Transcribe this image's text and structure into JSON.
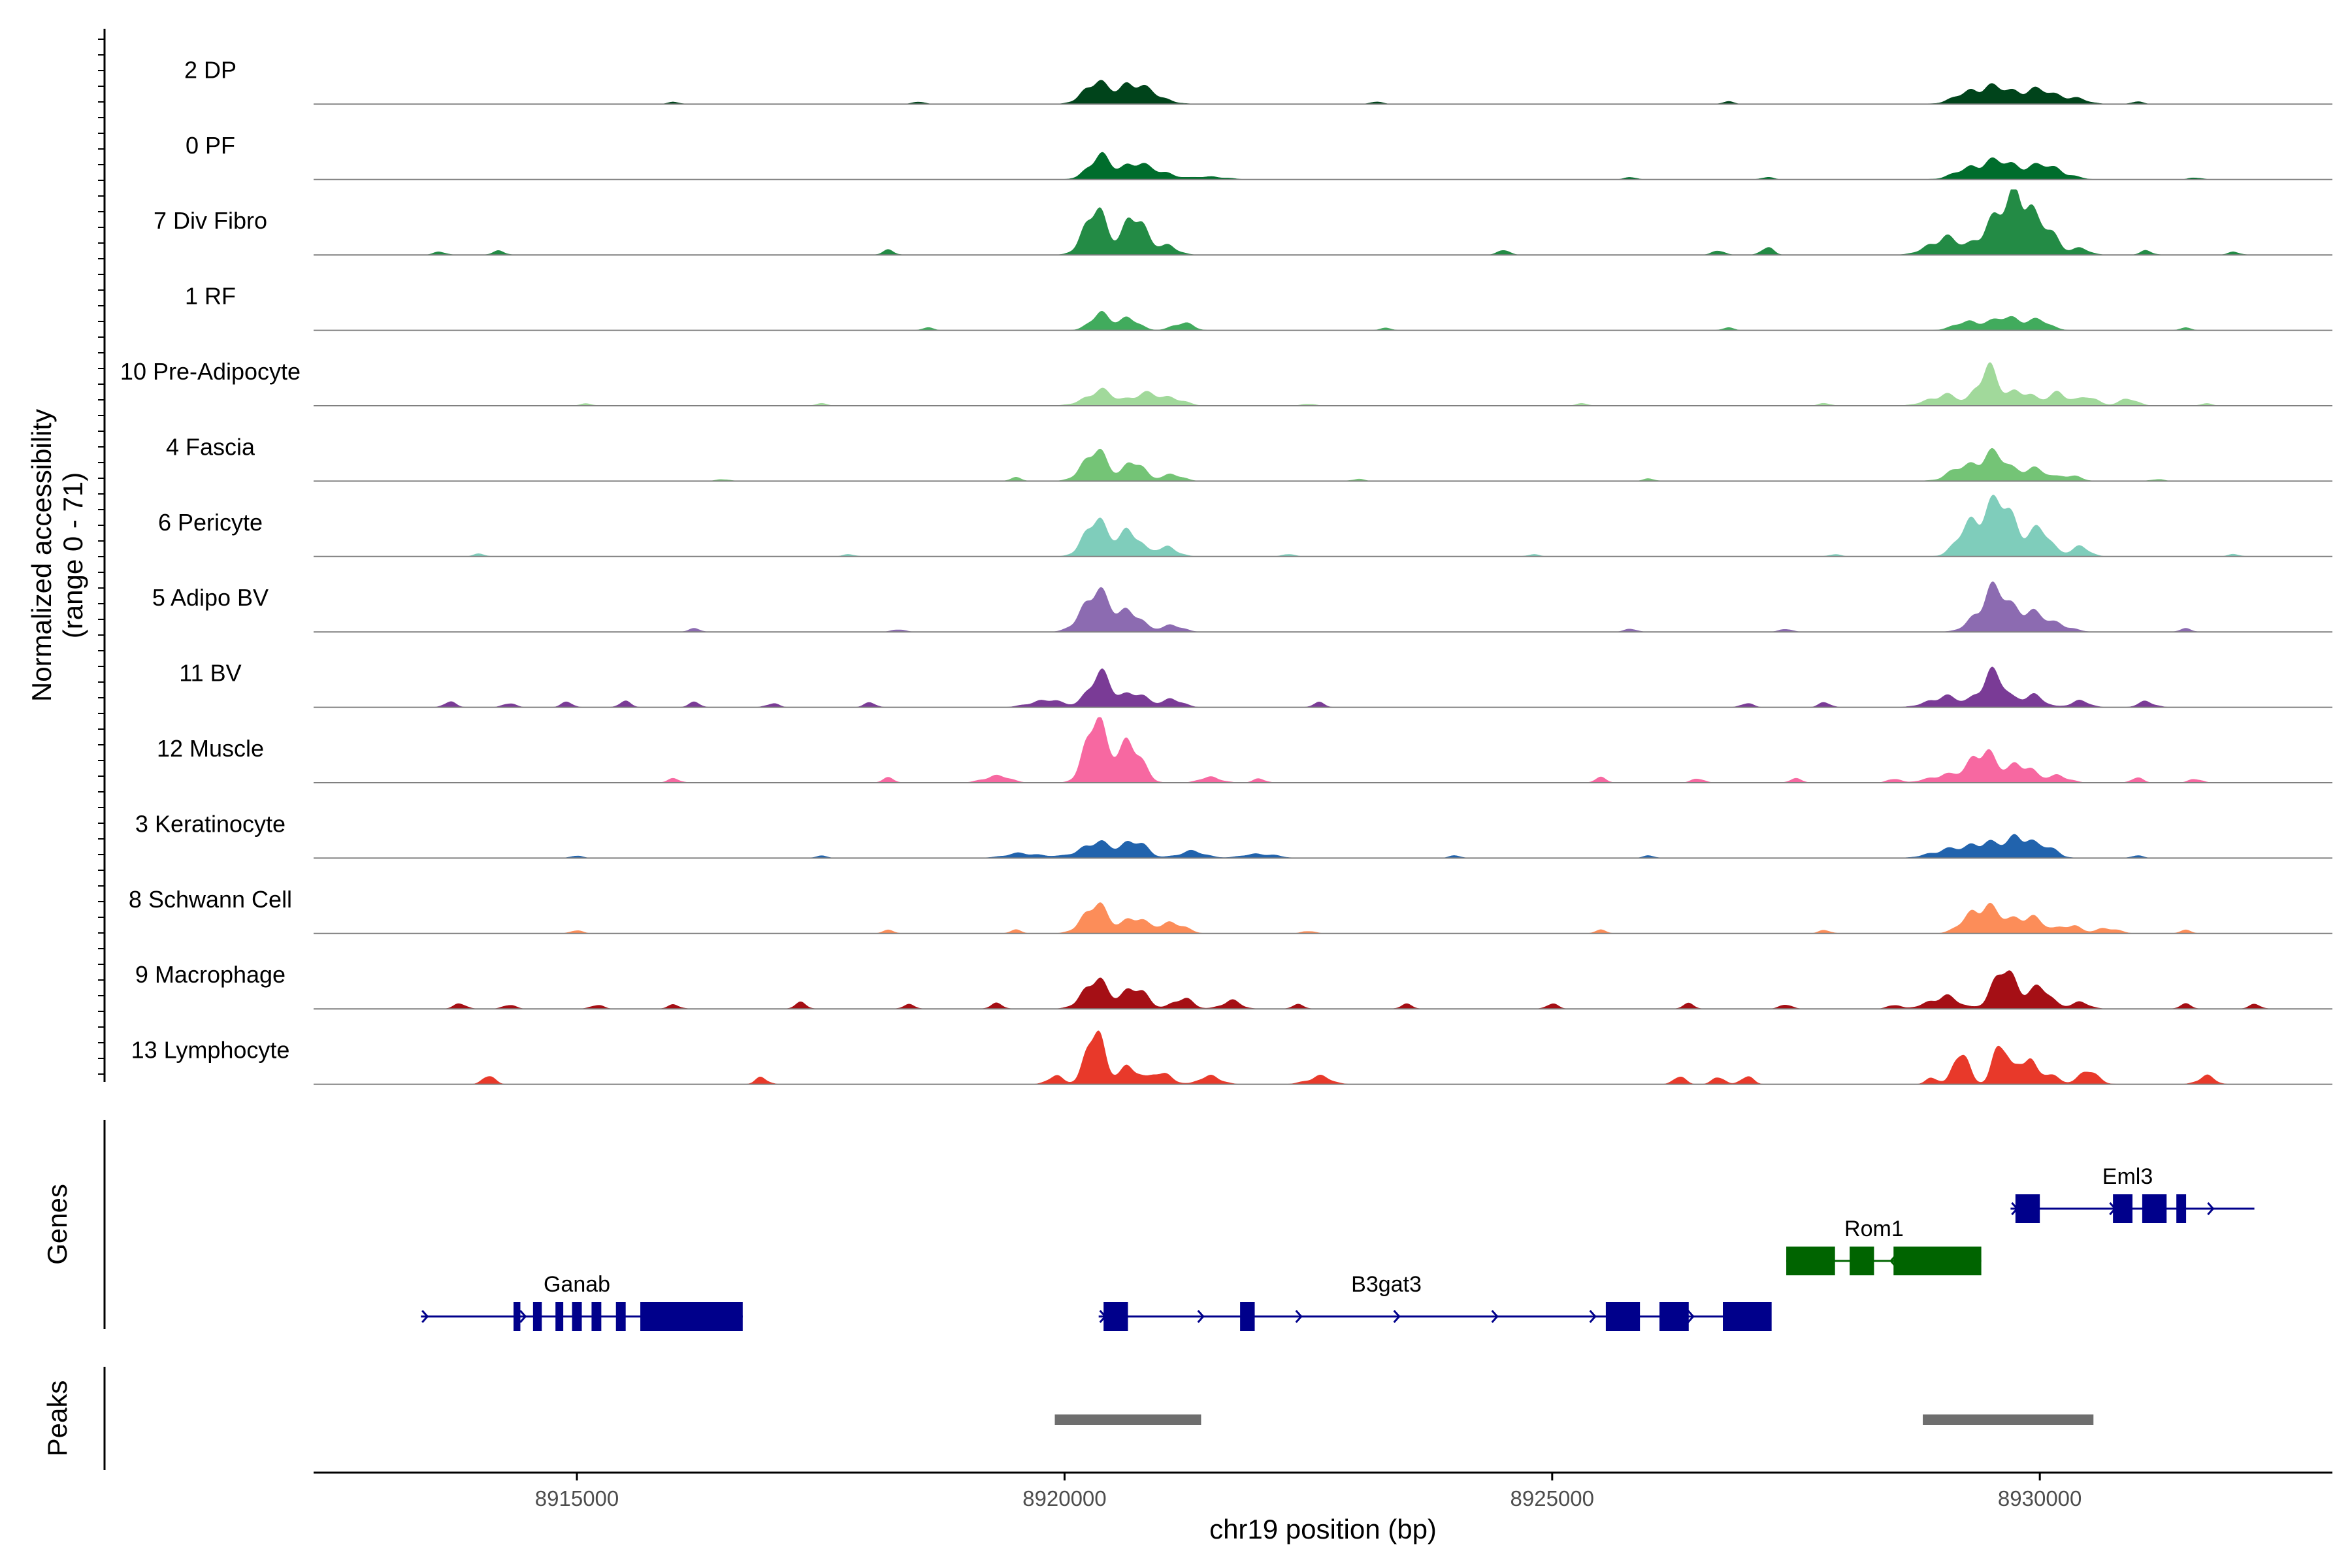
{
  "chart_data": {
    "type": "area",
    "title": "",
    "ylabel_line1": "Normalized accessibility",
    "ylabel_line2": "(range 0 - 71)",
    "yrange": [
      0,
      71
    ],
    "xlabel": "chr19 position (bp)",
    "xlim": [
      8912300,
      8933000
    ],
    "xticks": [
      8915000,
      8920000,
      8925000,
      8930000
    ],
    "xtick_labels": [
      "8915000",
      "8920000",
      "8925000",
      "8930000"
    ],
    "tracks": [
      {
        "name": "2 DP",
        "color": "#00441b",
        "peaks": [
          [
            8920300,
            14,
            120
          ],
          [
            8920650,
            13,
            120
          ],
          [
            8920900,
            6,
            150
          ],
          [
            8929400,
            11,
            200
          ],
          [
            8929900,
            9,
            200
          ],
          [
            8930300,
            4,
            150
          ]
        ],
        "noise": [
          [
            8916000,
            1.5
          ],
          [
            8918500,
            1.5
          ],
          [
            8923200,
            1.5
          ],
          [
            8926800,
            1.5
          ],
          [
            8931000,
            1.5
          ]
        ]
      },
      {
        "name": "0 PF",
        "color": "#006d2c",
        "peaks": [
          [
            8920350,
            14,
            120
          ],
          [
            8920700,
            11,
            120
          ],
          [
            8921000,
            5,
            130
          ],
          [
            8921500,
            2,
            150
          ],
          [
            8929400,
            10,
            200
          ],
          [
            8929800,
            8,
            200
          ],
          [
            8930150,
            6,
            150
          ]
        ],
        "noise": [
          [
            8925800,
            1.5
          ],
          [
            8927200,
            1.5
          ],
          [
            8931600,
            1.5
          ]
        ]
      },
      {
        "name": "7 Div Fibro",
        "color": "#238b45",
        "peaks": [
          [
            8920300,
            30,
            110
          ],
          [
            8920700,
            28,
            110
          ],
          [
            8921050,
            7,
            100
          ],
          [
            8929000,
            11,
            150
          ],
          [
            8929500,
            19,
            150
          ],
          [
            8929800,
            44,
            120
          ],
          [
            8930100,
            14,
            100
          ],
          [
            8930400,
            4,
            100
          ]
        ],
        "noise": [
          [
            8913600,
            2
          ],
          [
            8914200,
            3
          ],
          [
            8918200,
            3
          ],
          [
            8924500,
            3
          ],
          [
            8926700,
            3
          ],
          [
            8927200,
            5
          ],
          [
            8931100,
            3
          ],
          [
            8932000,
            2
          ]
        ]
      },
      {
        "name": "1 RF",
        "color": "#41ab5d",
        "peaks": [
          [
            8920350,
            10,
            100
          ],
          [
            8920650,
            9,
            100
          ],
          [
            8921200,
            5,
            100
          ],
          [
            8929300,
            6,
            150
          ],
          [
            8929700,
            8,
            150
          ],
          [
            8930000,
            5,
            120
          ]
        ],
        "noise": [
          [
            8918600,
            1.5
          ],
          [
            8923300,
            1.5
          ],
          [
            8926800,
            1.5
          ],
          [
            8931500,
            1.5
          ]
        ]
      },
      {
        "name": "10 Pre-Adipocyte",
        "color": "#a1d99b",
        "peaks": [
          [
            8920350,
            9,
            150
          ],
          [
            8920800,
            7,
            150
          ],
          [
            8921100,
            5,
            120
          ],
          [
            8929000,
            7,
            150
          ],
          [
            8929450,
            25,
            100
          ],
          [
            8929800,
            11,
            120
          ],
          [
            8930200,
            9,
            100
          ],
          [
            8930500,
            5,
            100
          ],
          [
            8930900,
            4,
            100
          ]
        ],
        "noise": [
          [
            8915100,
            1.5
          ],
          [
            8917500,
            1.5
          ],
          [
            8922500,
            1.5
          ],
          [
            8925300,
            1.5
          ],
          [
            8927800,
            1.5
          ],
          [
            8931700,
            1.5
          ]
        ]
      },
      {
        "name": "4 Fascia",
        "color": "#74c476",
        "peaks": [
          [
            8920300,
            20,
            120
          ],
          [
            8920700,
            14,
            100
          ],
          [
            8921100,
            5,
            100
          ],
          [
            8929200,
            7,
            150
          ],
          [
            8929500,
            16,
            150
          ],
          [
            8929900,
            8,
            150
          ],
          [
            8930300,
            4,
            100
          ]
        ],
        "noise": [
          [
            8916500,
            1.5
          ],
          [
            8919500,
            2
          ],
          [
            8923000,
            1.5
          ],
          [
            8926000,
            1.5
          ],
          [
            8931200,
            1.5
          ]
        ]
      },
      {
        "name": "6 Pericyte",
        "color": "#7fcdbb",
        "peaks": [
          [
            8920300,
            24,
            110
          ],
          [
            8920650,
            19,
            110
          ],
          [
            8921050,
            7,
            100
          ],
          [
            8929350,
            26,
            150
          ],
          [
            8929650,
            28,
            140
          ],
          [
            8930000,
            15,
            120
          ],
          [
            8930400,
            6,
            100
          ]
        ],
        "noise": [
          [
            8914000,
            1.5
          ],
          [
            8917800,
            1.5
          ],
          [
            8922300,
            1.5
          ],
          [
            8924800,
            1.5
          ],
          [
            8927900,
            1.5
          ],
          [
            8932000,
            1.5
          ]
        ]
      },
      {
        "name": "5 Adipo BV",
        "color": "#8c6bb1",
        "peaks": [
          [
            8920300,
            26,
            130
          ],
          [
            8920650,
            15,
            120
          ],
          [
            8921100,
            5,
            100
          ],
          [
            8929500,
            25,
            150
          ],
          [
            8929850,
            14,
            150
          ],
          [
            8930200,
            5,
            120
          ]
        ],
        "noise": [
          [
            8916200,
            2
          ],
          [
            8918300,
            2
          ],
          [
            8925800,
            2
          ],
          [
            8927400,
            2
          ],
          [
            8931500,
            2
          ]
        ]
      },
      {
        "name": "11 BV",
        "color": "#7a3b96",
        "peaks": [
          [
            8919800,
            5,
            150
          ],
          [
            8920350,
            20,
            120
          ],
          [
            8920700,
            10,
            120
          ],
          [
            8921100,
            6,
            100
          ],
          [
            8929000,
            7,
            150
          ],
          [
            8929500,
            21,
            130
          ],
          [
            8929900,
            8,
            120
          ],
          [
            8930400,
            4,
            100
          ],
          [
            8931100,
            4,
            80
          ]
        ],
        "noise": [
          [
            8913700,
            4
          ],
          [
            8914300,
            3
          ],
          [
            8914900,
            3
          ],
          [
            8915500,
            4
          ],
          [
            8916200,
            3
          ],
          [
            8917000,
            3
          ],
          [
            8918000,
            3
          ],
          [
            8922600,
            3
          ],
          [
            8927000,
            3
          ],
          [
            8927800,
            3
          ]
        ]
      },
      {
        "name": "12 Muscle",
        "color": "#f768a1",
        "peaks": [
          [
            8919300,
            5,
            120
          ],
          [
            8920300,
            42,
            100
          ],
          [
            8920650,
            30,
            120
          ],
          [
            8921500,
            4,
            100
          ],
          [
            8929000,
            5,
            150
          ],
          [
            8929400,
            23,
            120
          ],
          [
            8929800,
            14,
            120
          ],
          [
            8930200,
            5,
            100
          ]
        ],
        "noise": [
          [
            8916000,
            3
          ],
          [
            8918200,
            3
          ],
          [
            8922000,
            3
          ],
          [
            8925500,
            3
          ],
          [
            8926500,
            3
          ],
          [
            8927500,
            3
          ],
          [
            8928500,
            3
          ],
          [
            8931000,
            3
          ],
          [
            8931600,
            3
          ]
        ]
      },
      {
        "name": "3 Keratinocyte",
        "color": "#2163ad",
        "peaks": [
          [
            8919600,
            3,
            200
          ],
          [
            8920300,
            10,
            150
          ],
          [
            8920700,
            12,
            120
          ],
          [
            8921300,
            4,
            150
          ],
          [
            8922000,
            3,
            150
          ],
          [
            8929000,
            5,
            150
          ],
          [
            8929400,
            11,
            150
          ],
          [
            8929800,
            16,
            120
          ],
          [
            8930100,
            6,
            100
          ]
        ],
        "noise": [
          [
            8915000,
            1.5
          ],
          [
            8917500,
            1.5
          ],
          [
            8924000,
            1.5
          ],
          [
            8926000,
            1.5
          ],
          [
            8931000,
            1.5
          ]
        ]
      },
      {
        "name": "8 Schwann Cell",
        "color": "#fc8d59",
        "peaks": [
          [
            8920300,
            19,
            120
          ],
          [
            8920700,
            11,
            120
          ],
          [
            8921100,
            8,
            120
          ],
          [
            8929400,
            19,
            150
          ],
          [
            8929850,
            12,
            150
          ],
          [
            8930300,
            6,
            100
          ],
          [
            8930700,
            4,
            100
          ]
        ],
        "noise": [
          [
            8915000,
            2
          ],
          [
            8918200,
            2
          ],
          [
            8919500,
            2
          ],
          [
            8922500,
            2
          ],
          [
            8925500,
            2
          ],
          [
            8927800,
            2
          ],
          [
            8931500,
            2
          ]
        ]
      },
      {
        "name": "9 Macrophage",
        "color": "#a50f15",
        "peaks": [
          [
            8920300,
            19,
            120
          ],
          [
            8920700,
            15,
            120
          ],
          [
            8921200,
            7,
            100
          ],
          [
            8921700,
            5,
            100
          ],
          [
            8929000,
            8,
            150
          ],
          [
            8929650,
            24,
            130
          ],
          [
            8930000,
            12,
            120
          ],
          [
            8930400,
            4,
            100
          ]
        ],
        "noise": [
          [
            8913800,
            4
          ],
          [
            8914300,
            3
          ],
          [
            8915200,
            3
          ],
          [
            8916000,
            3
          ],
          [
            8917300,
            4
          ],
          [
            8918400,
            3
          ],
          [
            8919300,
            4
          ],
          [
            8922400,
            3
          ],
          [
            8923500,
            3
          ],
          [
            8925000,
            3
          ],
          [
            8926400,
            3
          ],
          [
            8927400,
            3
          ],
          [
            8928500,
            3
          ],
          [
            8931500,
            3
          ],
          [
            8932200,
            3
          ]
        ]
      },
      {
        "name": "13 Lymphocyte",
        "color": "#e8392a",
        "peaks": [
          [
            8919900,
            5,
            80
          ],
          [
            8920300,
            36,
            90
          ],
          [
            8920650,
            13,
            100
          ],
          [
            8921000,
            8,
            100
          ],
          [
            8921500,
            6,
            100
          ],
          [
            8922600,
            5,
            120
          ],
          [
            8929200,
            20,
            80
          ],
          [
            8929600,
            24,
            80
          ],
          [
            8929850,
            20,
            80
          ],
          [
            8930100,
            6,
            100
          ],
          [
            8930500,
            8,
            100
          ],
          [
            8931700,
            6,
            80
          ]
        ],
        "noise": [
          [
            8914100,
            6
          ],
          [
            8916900,
            5
          ],
          [
            8926300,
            5
          ],
          [
            8926700,
            5
          ],
          [
            8927000,
            6
          ],
          [
            8928900,
            5
          ]
        ]
      }
    ],
    "genes": [
      {
        "name": "Ganab",
        "color": "#00008b",
        "strand": "+",
        "start": 8913400,
        "end": 8916700,
        "label_x": 8915000,
        "row": 0,
        "exons": [
          [
            8914350,
            8914420
          ],
          [
            8914550,
            8914640
          ],
          [
            8914780,
            8914860
          ],
          [
            8914950,
            8915050
          ],
          [
            8915150,
            8915250
          ],
          [
            8915400,
            8915500
          ],
          [
            8915650,
            8916700
          ]
        ]
      },
      {
        "name": "B3gat3",
        "color": "#00008b",
        "strand": "+",
        "start": 8920350,
        "end": 8927200,
        "label_x": 8923300,
        "row": 0,
        "exons": [
          [
            8920400,
            8920650
          ],
          [
            8921800,
            8921950
          ],
          [
            8925550,
            8925900
          ],
          [
            8926100,
            8926400
          ],
          [
            8926750,
            8927250
          ]
        ]
      },
      {
        "name": "Rom1",
        "color": "#006400",
        "strand": "-",
        "start": 8927400,
        "end": 8929400,
        "label_x": 8928300,
        "row": 1,
        "exons": [
          [
            8927400,
            8927900
          ],
          [
            8928050,
            8928300
          ],
          [
            8928500,
            8929400
          ]
        ]
      },
      {
        "name": "Eml3",
        "color": "#00008b",
        "strand": "+",
        "start": 8929700,
        "end": 8932200,
        "label_x": 8930900,
        "row": 2,
        "exons": [
          [
            8929750,
            8930000
          ],
          [
            8930750,
            8930950
          ],
          [
            8931050,
            8931300
          ],
          [
            8931400,
            8931500
          ]
        ]
      }
    ],
    "peaks_track": [
      [
        8919900,
        8921400
      ],
      [
        8928800,
        8930550
      ]
    ],
    "peak_color": "#6e6e6e",
    "panel_labels": {
      "genes": "Genes",
      "peaks": "Peaks"
    }
  }
}
